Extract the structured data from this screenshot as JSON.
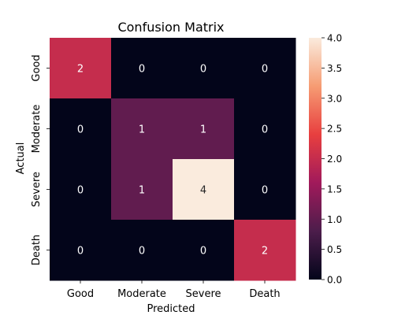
{
  "chart_data": {
    "type": "heatmap",
    "title": "Confusion Matrix",
    "xlabel": "Predicted",
    "ylabel": "Actual",
    "x_categories": [
      "Good",
      "Moderate",
      "Severe",
      "Death"
    ],
    "y_categories": [
      "Good",
      "Moderate",
      "Severe",
      "Death"
    ],
    "values": [
      [
        2,
        0,
        0,
        0
      ],
      [
        0,
        1,
        1,
        0
      ],
      [
        0,
        1,
        4,
        0
      ],
      [
        0,
        0,
        0,
        2
      ]
    ],
    "colorbar": {
      "range": [
        0,
        4
      ],
      "ticks": [
        "0.0",
        "0.5",
        "1.0",
        "1.5",
        "2.0",
        "2.5",
        "3.0",
        "3.5",
        "4.0"
      ],
      "colormap": "rocket",
      "stops": [
        "#03051a",
        "#4c1d4b",
        "#a11a5b",
        "#e83f3f",
        "#f69c73",
        "#faebdd"
      ]
    },
    "grid": false,
    "legend": "colorbar-right"
  }
}
